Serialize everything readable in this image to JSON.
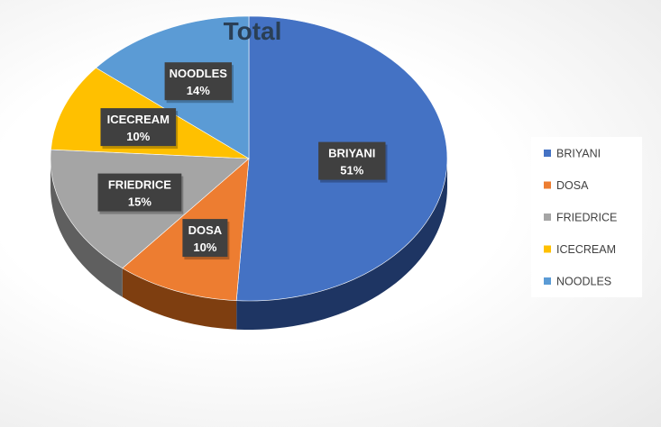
{
  "chart_data": {
    "type": "pie",
    "title": "Total",
    "categories": [
      "BRIYANI",
      "DOSA",
      "FRIEDRICE",
      "ICECREAM",
      "NOODLES"
    ],
    "values": [
      51,
      10,
      15,
      10,
      14
    ],
    "value_labels": [
      "51%",
      "10%",
      "15%",
      "10%",
      "14%"
    ],
    "colors": [
      "#4472C4",
      "#ED7D31",
      "#A5A5A5",
      "#FFC000",
      "#5B9BD5"
    ],
    "side_colors": [
      "#1e3563",
      "#7e3e10",
      "#5f5f5f",
      "#8a6800",
      "#2a5a88"
    ],
    "three_d": true,
    "data_labels": "callout-boxes",
    "legend_position": "right"
  }
}
